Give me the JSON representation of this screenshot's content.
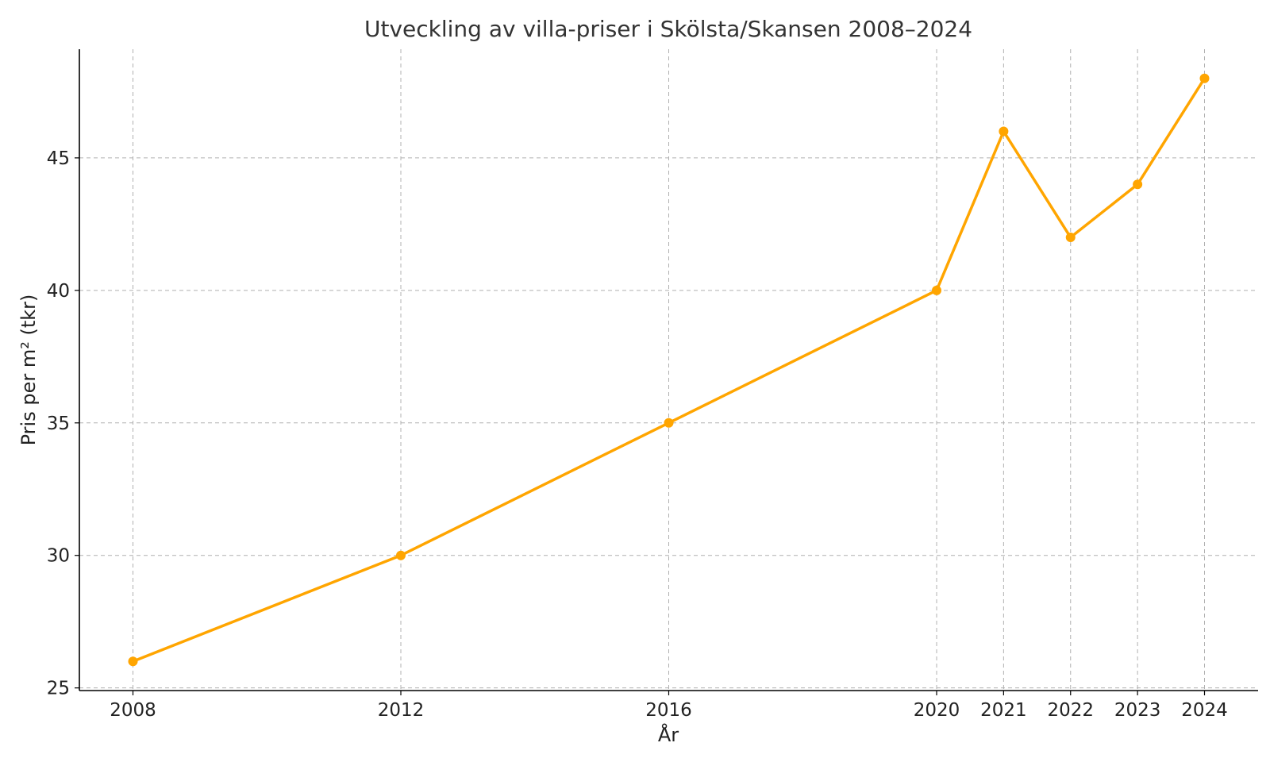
{
  "chart_data": {
    "type": "line",
    "title": "Utveckling av villa-priser i Skölsta/Skansen 2008–2024",
    "xlabel": "År",
    "ylabel": "Pris per m² (tkr)",
    "x": [
      2008,
      2012,
      2016,
      2020,
      2021,
      2022,
      2023,
      2024
    ],
    "x_tick_labels": [
      "2008",
      "2012",
      "2016",
      "2020",
      "2021",
      "2022",
      "2023",
      "2024"
    ],
    "y_ticks": [
      25,
      30,
      35,
      40,
      45
    ],
    "y_tick_labels": [
      "25",
      "30",
      "35",
      "40",
      "45"
    ],
    "xlim": [
      2007.2,
      2024.8
    ],
    "ylim": [
      24.9,
      49.1
    ],
    "grid": true,
    "series": [
      {
        "color": "#FFA500",
        "values": [
          26,
          30,
          35,
          40,
          46,
          42,
          44,
          48
        ]
      }
    ]
  }
}
